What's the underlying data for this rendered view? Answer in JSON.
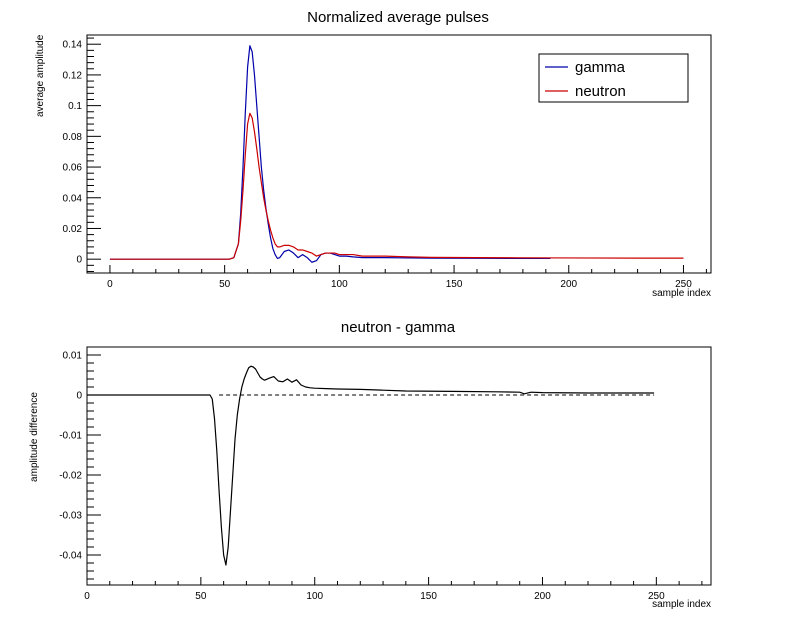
{
  "chart_data": [
    {
      "type": "line",
      "title": "Normalized average pulses",
      "xlabel": "sample index",
      "ylabel": "average amplitude",
      "xlim": [
        -10,
        262
      ],
      "ylim": [
        -0.009,
        0.146
      ],
      "xticks": [
        0,
        50,
        100,
        150,
        200,
        250
      ],
      "yticks": [
        0,
        0.02,
        0.04,
        0.06,
        0.08,
        0.1,
        0.12,
        0.14
      ],
      "ytick_labels": [
        "0",
        "0.02",
        "0.04",
        "0.06",
        "0.08",
        "0.1",
        "0.12",
        "0.14"
      ],
      "legend_position": "top-right",
      "series": [
        {
          "name": "gamma",
          "color": "#0000aa",
          "x": [
            0,
            20,
            40,
            52,
            54,
            56,
            57,
            58,
            59,
            60,
            61,
            62,
            63,
            64,
            65,
            66,
            67,
            68,
            69,
            70,
            71,
            72,
            73,
            74,
            76,
            78,
            80,
            82,
            84,
            86,
            88,
            90,
            92,
            94,
            96,
            98,
            100,
            103,
            106,
            110,
            120,
            130,
            140,
            160,
            180,
            192
          ],
          "y": [
            0,
            0,
            0,
            0,
            0.001,
            0.01,
            0.03,
            0.06,
            0.095,
            0.125,
            0.139,
            0.135,
            0.12,
            0.1,
            0.08,
            0.06,
            0.045,
            0.033,
            0.023,
            0.014,
            0.007,
            0.003,
            0.0005,
            0.001,
            0.005,
            0.006,
            0.004,
            0.001,
            0.003,
            0.001,
            -0.002,
            -0.001,
            0.003,
            0.004,
            0.004,
            0.003,
            0.002,
            0.002,
            0.0015,
            0.001,
            0.001,
            0.0008,
            0.0007,
            0.0006,
            0.0005,
            0.0005
          ]
        },
        {
          "name": "neutron",
          "color": "#cc0000",
          "x": [
            0,
            20,
            40,
            52,
            54,
            56,
            57,
            58,
            59,
            60,
            61,
            62,
            63,
            64,
            65,
            66,
            67,
            68,
            69,
            70,
            71,
            72,
            73,
            74,
            76,
            78,
            80,
            82,
            84,
            86,
            88,
            90,
            92,
            94,
            96,
            98,
            100,
            103,
            106,
            110,
            120,
            130,
            140,
            160,
            180,
            200,
            230,
            250
          ],
          "y": [
            0,
            0,
            0,
            0,
            0.001,
            0.01,
            0.025,
            0.045,
            0.068,
            0.088,
            0.095,
            0.092,
            0.083,
            0.072,
            0.06,
            0.05,
            0.04,
            0.032,
            0.025,
            0.019,
            0.014,
            0.01,
            0.008,
            0.008,
            0.009,
            0.009,
            0.008,
            0.006,
            0.006,
            0.005,
            0.004,
            0.002,
            0.003,
            0.004,
            0.004,
            0.004,
            0.003,
            0.003,
            0.003,
            0.002,
            0.002,
            0.0015,
            0.0012,
            0.001,
            0.0009,
            0.0008,
            0.0007,
            0.0007
          ]
        }
      ]
    },
    {
      "type": "line",
      "title": "neutron - gamma",
      "xlabel": "sample index",
      "ylabel": "amplitude difference",
      "xlim": [
        0,
        274
      ],
      "ylim": [
        -0.0475,
        0.012
      ],
      "xticks": [
        0,
        50,
        100,
        150,
        200,
        250
      ],
      "yticks": [
        0.01,
        0,
        -0.01,
        -0.02,
        -0.03,
        -0.04
      ],
      "ytick_labels": [
        "0.01",
        "0",
        "-0.01",
        "-0.02",
        "-0.03",
        "-0.04"
      ],
      "reference_line": 0,
      "series": [
        {
          "color": "#000000",
          "x": [
            0,
            20,
            40,
            50,
            54,
            55,
            56,
            57,
            58,
            59,
            60,
            61,
            62,
            63,
            64,
            65,
            66,
            67,
            68,
            69,
            70,
            71,
            72,
            73,
            74,
            75,
            76,
            77,
            78,
            80,
            82,
            84,
            86,
            88,
            90,
            92,
            94,
            96,
            98,
            100,
            105,
            110,
            120,
            130,
            140,
            160,
            180,
            190,
            192,
            195,
            200,
            220,
            249
          ],
          "y": [
            0,
            0,
            0,
            0,
            0,
            -0.001,
            -0.006,
            -0.014,
            -0.024,
            -0.033,
            -0.04,
            -0.0425,
            -0.038,
            -0.029,
            -0.02,
            -0.011,
            -0.005,
            -0.001,
            0.002,
            0.004,
            0.0055,
            0.0068,
            0.0072,
            0.007,
            0.0065,
            0.0055,
            0.0045,
            0.004,
            0.0037,
            0.0042,
            0.0046,
            0.0035,
            0.0033,
            0.004,
            0.0032,
            0.0038,
            0.0025,
            0.002,
            0.0018,
            0.0017,
            0.0016,
            0.0015,
            0.0014,
            0.0012,
            0.001,
            0.0009,
            0.0008,
            0.0007,
            0.0003,
            0.0007,
            0.0006,
            0.0005,
            0.0005
          ]
        }
      ]
    }
  ]
}
